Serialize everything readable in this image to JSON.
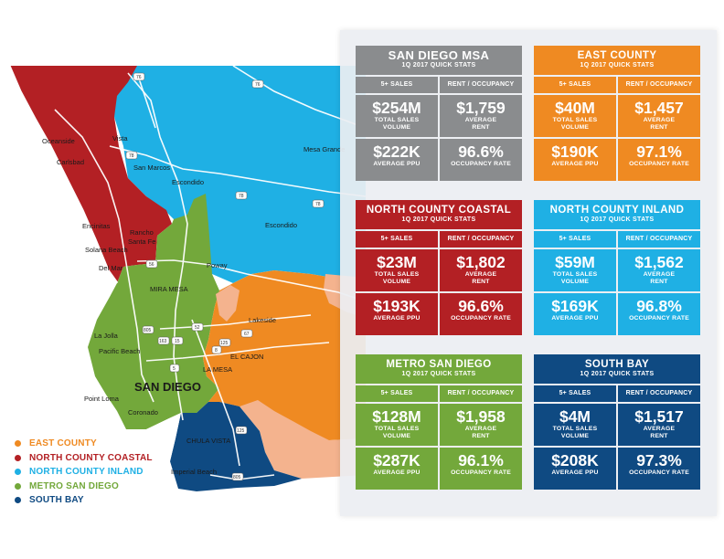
{
  "colors": {
    "east_county": "#ef8a22",
    "north_county_coastal": "#b32024",
    "north_county_inland": "#1fb0e4",
    "metro_san_diego": "#73a83b",
    "south_bay": "#0f4a82",
    "msa": "#8a8c8e",
    "peach": "#f4b38e"
  },
  "map": {
    "places": [
      "Oceanside",
      "Vista",
      "Carlsbad",
      "San Marcos",
      "Mesa Grande",
      "Escondido",
      "Encinitas",
      "Rancho Santa Fe",
      "Solana Beach",
      "Escondido",
      "Del Mar",
      "Poway",
      "MIRA MESA",
      "Lakeside",
      "La Jolla",
      "Pacific Beach",
      "EL CAJON",
      "LA MESA",
      "SAN DIEGO",
      "Point Loma",
      "Coronado",
      "CHULA VISTA",
      "Imperial Beach"
    ],
    "shields": [
      "76",
      "76",
      "78",
      "78",
      "78",
      "56",
      "15",
      "163",
      "5",
      "52",
      "8",
      "67",
      "125",
      "125",
      "805",
      "805"
    ]
  },
  "legend": [
    {
      "label": "EAST COUNTY",
      "color": "#ef8a22"
    },
    {
      "label": "NORTH COUNTY COASTAL",
      "color": "#b32024"
    },
    {
      "label": "NORTH COUNTY INLAND",
      "color": "#1fb0e4"
    },
    {
      "label": "METRO SAN DIEGO",
      "color": "#73a83b"
    },
    {
      "label": "SOUTH BAY",
      "color": "#0f4a82"
    }
  ],
  "cards": [
    {
      "title": "SAN DIEGO MSA",
      "subtitle": "1Q 2017 QUICK STATS",
      "color": "#8a8c8e",
      "col_left": "5+ SALES",
      "col_right": "RENT / OCCUPANCY",
      "sales_volume": "$254M",
      "sales_volume_label_1": "TOTAL SALES",
      "sales_volume_label_2": "VOLUME",
      "rent": "$1,759",
      "rent_label_1": "AVERAGE",
      "rent_label_2": "RENT",
      "ppu": "$222K",
      "ppu_label": "AVERAGE PPU",
      "occupancy": "96.6%",
      "occupancy_label": "OCCUPANCY RATE"
    },
    {
      "title": "EAST COUNTY",
      "subtitle": "1Q 2017 QUICK STATS",
      "color": "#ef8a22",
      "col_left": "5+ SALES",
      "col_right": "RENT / OCCUPANCY",
      "sales_volume": "$40M",
      "sales_volume_label_1": "TOTAL SALES",
      "sales_volume_label_2": "VOLUME",
      "rent": "$1,457",
      "rent_label_1": "AVERAGE",
      "rent_label_2": "RENT",
      "ppu": "$190K",
      "ppu_label": "AVERAGE PPU",
      "occupancy": "97.1%",
      "occupancy_label": "OCCUPANCY RATE"
    },
    {
      "title": "NORTH COUNTY COASTAL",
      "subtitle": "1Q 2017 QUICK STATS",
      "color": "#b32024",
      "col_left": "5+ SALES",
      "col_right": "RENT / OCCUPANCY",
      "sales_volume": "$23M",
      "sales_volume_label_1": "TOTAL SALES",
      "sales_volume_label_2": "VOLUME",
      "rent": "$1,802",
      "rent_label_1": "AVERAGE",
      "rent_label_2": "RENT",
      "ppu": "$193K",
      "ppu_label": "AVERAGE PPU",
      "occupancy": "96.6%",
      "occupancy_label": "OCCUPANCY RATE"
    },
    {
      "title": "NORTH COUNTY INLAND",
      "subtitle": "1Q 2017 QUICK STATS",
      "color": "#1fb0e4",
      "col_left": "5+ SALES",
      "col_right": "RENT / OCCUPANCY",
      "sales_volume": "$59M",
      "sales_volume_label_1": "TOTAL SALES",
      "sales_volume_label_2": "VOLUME",
      "rent": "$1,562",
      "rent_label_1": "AVERAGE",
      "rent_label_2": "RENT",
      "ppu": "$169K",
      "ppu_label": "AVERAGE PPU",
      "occupancy": "96.8%",
      "occupancy_label": "OCCUPANCY RATE"
    },
    {
      "title": "METRO SAN DIEGO",
      "subtitle": "1Q 2017 QUICK STATS",
      "color": "#73a83b",
      "col_left": "5+ SALES",
      "col_right": "RENT / OCCUPANCY",
      "sales_volume": "$128M",
      "sales_volume_label_1": "TOTAL SALES",
      "sales_volume_label_2": "VOLUME",
      "rent": "$1,958",
      "rent_label_1": "AVERAGE",
      "rent_label_2": "RENT",
      "ppu": "$287K",
      "ppu_label": "AVERAGE PPU",
      "occupancy": "96.1%",
      "occupancy_label": "OCCUPANCY RATE"
    },
    {
      "title": "SOUTH BAY",
      "subtitle": "1Q 2017 QUICK STATS",
      "color": "#0f4a82",
      "col_left": "5+ SALES",
      "col_right": "RENT / OCCUPANCY",
      "sales_volume": "$4M",
      "sales_volume_label_1": "TOTAL SALES",
      "sales_volume_label_2": "VOLUME",
      "rent": "$1,517",
      "rent_label_1": "AVERAGE",
      "rent_label_2": "RENT",
      "ppu": "$208K",
      "ppu_label": "AVERAGE PPU",
      "occupancy": "97.3%",
      "occupancy_label": "OCCUPANCY RATE"
    }
  ]
}
